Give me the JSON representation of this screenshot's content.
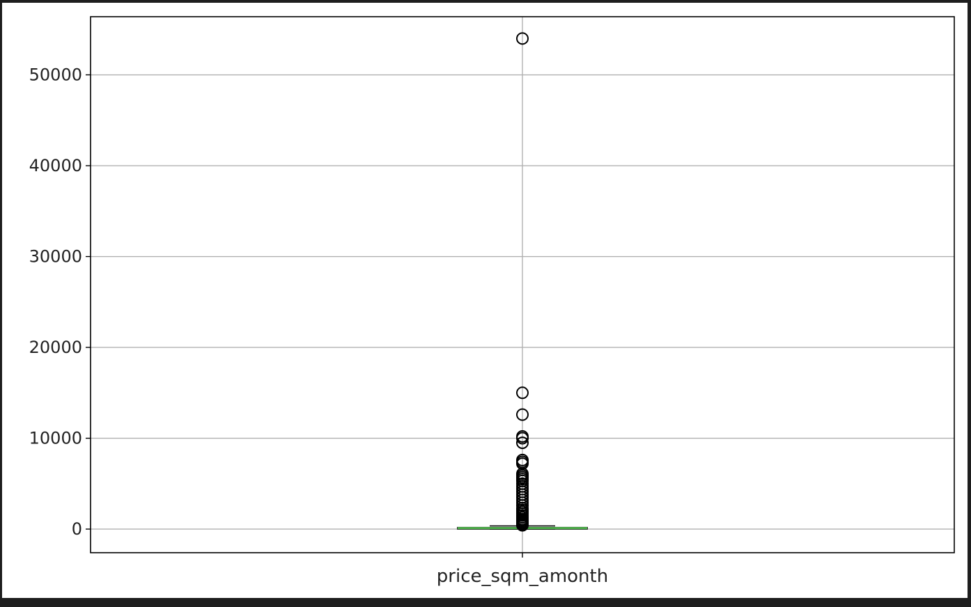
{
  "chart_data": {
    "type": "box",
    "categories": [
      "price_sqm_amonth"
    ],
    "ylim": [
      -2600,
      56400
    ],
    "yticks": [
      0,
      10000,
      20000,
      30000,
      40000,
      50000
    ],
    "ytick_labels": [
      "0",
      "10000",
      "20000",
      "30000",
      "40000",
      "50000"
    ],
    "grid": true,
    "title": "",
    "xlabel": "",
    "ylabel": "",
    "box": {
      "q1": 5,
      "median": 110,
      "q3": 180,
      "whisker_low": 0,
      "whisker_high": 350
    },
    "outliers": [
      54000,
      15000,
      12600,
      10200,
      10000,
      9500,
      7600,
      7400,
      7200,
      6100,
      5900,
      5700,
      5500,
      5300,
      5000,
      4700,
      4400,
      4100,
      3800,
      3500,
      3200,
      2900,
      2600,
      2300,
      2100,
      1900,
      1700,
      1500,
      1300,
      1100,
      950,
      800,
      650,
      500,
      420
    ],
    "colors": {
      "box": "#000000",
      "median": "#4daf4a",
      "grid": "#b0b0b0",
      "outlier_edge": "#000000"
    }
  }
}
